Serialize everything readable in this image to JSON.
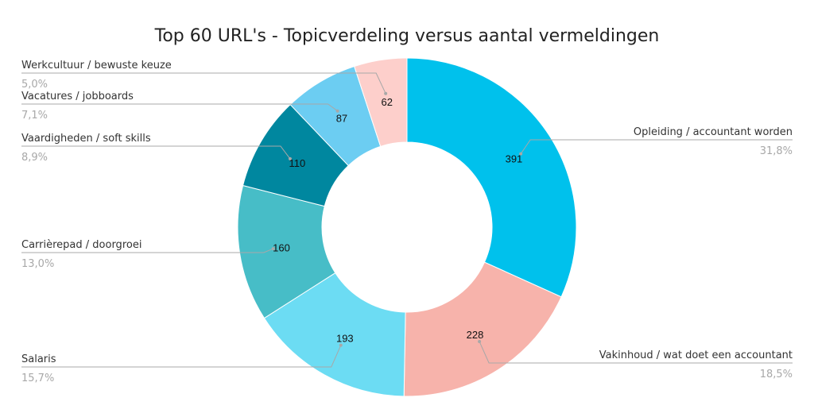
{
  "chart_data": {
    "type": "pie",
    "title": "Top 60 URL's - Topicverdeling versus aantal vermeldingen",
    "donut": true,
    "slices": [
      {
        "label": "Opleiding / accountant worden",
        "value": 391,
        "percent": "31,8%",
        "color": "#00c1ec"
      },
      {
        "label": "Vakinhoud / wat doet een accountant",
        "value": 228,
        "percent": "18,5%",
        "color": "#f7b3ab"
      },
      {
        "label": "Salaris",
        "value": 193,
        "percent": "15,7%",
        "color": "#6cdcf3"
      },
      {
        "label": "Carrièrepad / doorgroei",
        "value": 160,
        "percent": "13,0%",
        "color": "#47bdc7"
      },
      {
        "label": "Vaardigheden / soft skills",
        "value": 110,
        "percent": "8,9%",
        "color": "#00879f"
      },
      {
        "label": "Vacatures / jobboards",
        "value": 87,
        "percent": "7,1%",
        "color": "#6ccdf2"
      },
      {
        "label": "Werkcultuur / bewuste keuze",
        "value": 62,
        "percent": "5,0%",
        "color": "#fdcfcb"
      }
    ]
  }
}
